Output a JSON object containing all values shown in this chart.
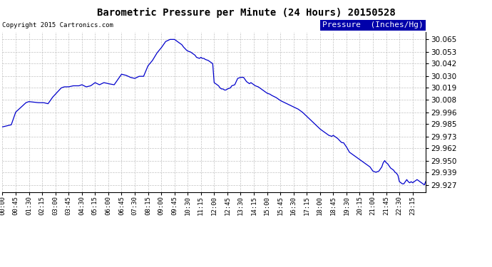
{
  "title": "Barometric Pressure per Minute (24 Hours) 20150528",
  "copyright": "Copyright 2015 Cartronics.com",
  "legend_label": "Pressure  (Inches/Hg)",
  "line_color": "#0000CC",
  "background_color": "#ffffff",
  "grid_color": "#bbbbbb",
  "yticks": [
    29.927,
    29.939,
    29.95,
    29.962,
    29.973,
    29.985,
    29.996,
    30.008,
    30.019,
    30.03,
    30.042,
    30.053,
    30.065
  ],
  "ylim": [
    29.92,
    30.072
  ],
  "xtick_labels": [
    "00:00",
    "00:45",
    "01:30",
    "02:15",
    "03:00",
    "03:45",
    "04:30",
    "05:15",
    "06:00",
    "06:45",
    "07:30",
    "08:15",
    "09:00",
    "09:45",
    "10:30",
    "11:15",
    "12:00",
    "12:45",
    "13:30",
    "14:15",
    "15:00",
    "15:45",
    "16:30",
    "17:15",
    "18:00",
    "18:45",
    "19:30",
    "20:15",
    "21:00",
    "21:45",
    "22:30",
    "23:15"
  ],
  "keypoints_x": [
    0,
    30,
    45,
    80,
    90,
    120,
    140,
    155,
    170,
    180,
    200,
    210,
    225,
    240,
    260,
    270,
    285,
    300,
    315,
    330,
    345,
    360,
    380,
    405,
    420,
    435,
    450,
    465,
    480,
    495,
    510,
    525,
    540,
    555,
    570,
    585,
    595,
    600,
    610,
    615,
    625,
    630,
    640,
    645,
    655,
    660,
    670,
    675,
    680,
    685,
    690,
    700,
    710,
    715,
    720,
    730,
    735,
    740,
    745,
    750,
    755,
    760,
    765,
    775,
    780,
    790,
    800,
    810,
    820,
    825,
    830,
    840,
    845,
    855,
    860,
    870,
    875,
    880,
    885,
    890,
    895,
    900,
    910,
    915,
    930,
    945,
    960,
    975,
    990,
    1005,
    1020,
    1035,
    1050,
    1065,
    1080,
    1095,
    1110,
    1120,
    1125,
    1130,
    1140,
    1150,
    1155,
    1160,
    1170,
    1180,
    1190,
    1200,
    1210,
    1215,
    1220,
    1230,
    1240,
    1250,
    1260,
    1270,
    1280,
    1290,
    1295,
    1300,
    1305,
    1310,
    1315,
    1320,
    1325,
    1330,
    1335,
    1340,
    1345,
    1350,
    1360,
    1365,
    1370,
    1375,
    1380,
    1385,
    1390,
    1395,
    1400,
    1410,
    1415,
    1420,
    1425,
    1430,
    1435,
    1439
  ],
  "keypoints_y": [
    29.982,
    29.984,
    29.996,
    30.005,
    30.006,
    30.005,
    30.005,
    30.004,
    30.01,
    30.013,
    30.019,
    30.02,
    30.02,
    30.021,
    30.021,
    30.022,
    30.02,
    30.021,
    30.024,
    30.022,
    30.024,
    30.023,
    30.022,
    30.032,
    30.031,
    30.029,
    30.028,
    30.03,
    30.03,
    30.04,
    30.045,
    30.052,
    30.057,
    30.063,
    30.065,
    30.065,
    30.063,
    30.062,
    30.06,
    30.058,
    30.055,
    30.054,
    30.053,
    30.052,
    30.05,
    30.048,
    30.047,
    30.048,
    30.047,
    30.047,
    30.046,
    30.045,
    30.043,
    30.042,
    30.024,
    30.022,
    30.021,
    30.019,
    30.018,
    30.018,
    30.017,
    30.017,
    30.018,
    30.019,
    30.021,
    30.022,
    30.028,
    30.029,
    30.029,
    30.027,
    30.025,
    30.023,
    30.024,
    30.022,
    30.021,
    30.02,
    30.019,
    30.018,
    30.017,
    30.016,
    30.015,
    30.014,
    30.013,
    30.012,
    30.01,
    30.007,
    30.005,
    30.003,
    30.001,
    29.999,
    29.996,
    29.992,
    29.988,
    29.984,
    29.98,
    29.977,
    29.974,
    29.973,
    29.974,
    29.973,
    29.971,
    29.968,
    29.967,
    29.967,
    29.963,
    29.958,
    29.956,
    29.954,
    29.952,
    29.951,
    29.95,
    29.948,
    29.946,
    29.944,
    29.94,
    29.939,
    29.94,
    29.944,
    29.948,
    29.95,
    29.948,
    29.947,
    29.945,
    29.943,
    29.942,
    29.941,
    29.939,
    29.938,
    29.936,
    29.93,
    29.928,
    29.928,
    29.93,
    29.932,
    29.93,
    29.929,
    29.93,
    29.929,
    29.93,
    29.932,
    29.931,
    29.93,
    29.929,
    29.928,
    29.927,
    29.93
  ]
}
